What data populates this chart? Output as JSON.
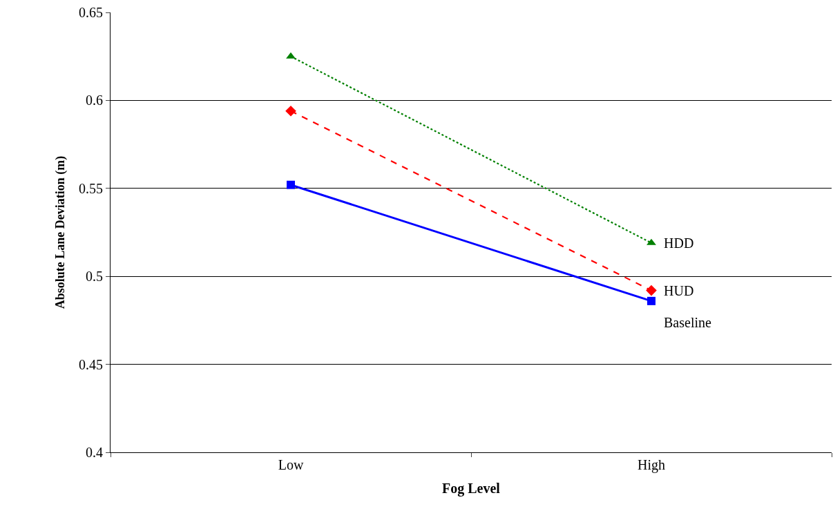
{
  "chart_data": {
    "type": "line",
    "xlabel": "Fog Level",
    "ylabel": "Absolute Lane Deviation (m)",
    "categories": [
      "Low",
      "High"
    ],
    "series": [
      {
        "name": "HDD",
        "color": "#008000",
        "values": [
          0.625,
          0.519
        ],
        "marker": "triangle",
        "line_style": "dotted"
      },
      {
        "name": "HUD",
        "color": "#ff0000",
        "values": [
          0.594,
          0.492
        ],
        "marker": "diamond",
        "line_style": "dashed"
      },
      {
        "name": "Baseline",
        "color": "#0000ff",
        "values": [
          0.552,
          0.486
        ],
        "marker": "square",
        "line_style": "solid"
      }
    ],
    "ylim": [
      0.4,
      0.65
    ],
    "yticks": [
      0.4,
      0.45,
      0.5,
      0.55,
      0.6,
      0.65
    ],
    "grid": "y",
    "legend": false
  }
}
